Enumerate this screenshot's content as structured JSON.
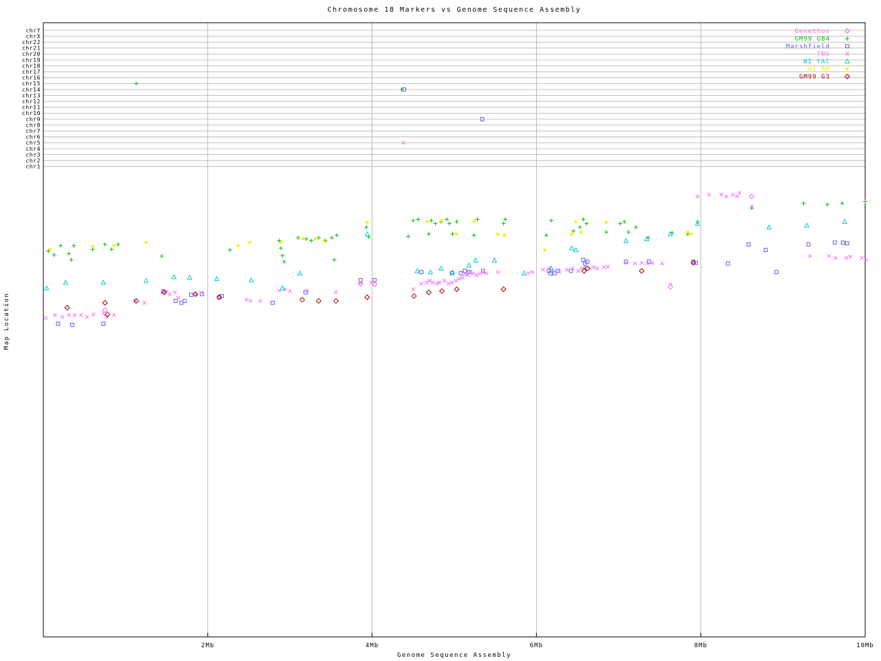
{
  "title": "Chromosome 18 Markers vs Genome Sequence Assembly",
  "axes": {
    "xlabel": "Genome Sequence Assembly",
    "ylabel": "Map Location",
    "x_range_mb": [
      0,
      10
    ],
    "x_ticks": [
      {
        "label": "2Mb",
        "mb": 2
      },
      {
        "label": "4Mb",
        "mb": 4
      },
      {
        "label": "6Mb",
        "mb": 6
      },
      {
        "label": "8Mb",
        "mb": 8
      },
      {
        "label": "10Mb",
        "mb": 10
      }
    ],
    "grid": true
  },
  "chromosome_rows": [
    "chrY",
    "chrX",
    "chr22",
    "chr21",
    "chr20",
    "chr19",
    "chr18",
    "chr17",
    "chr16",
    "chr15",
    "chr14",
    "chr13",
    "chr12",
    "chr11",
    "chr10",
    "chr9",
    "chr8",
    "chr7",
    "chr6",
    "chr5",
    "chr4",
    "chr3",
    "chr2",
    "chr1"
  ],
  "colors": {
    "frame": "#000000",
    "grid": "#b8b8b8",
    "chrom_line": "#b0b0b0"
  },
  "chart_data": {
    "type": "scatter",
    "title": "Chromosome 18 Markers vs Genome Sequence Assembly",
    "xlabel": "Genome Sequence Assembly",
    "ylabel": "Map Location",
    "x_unit": "Mb",
    "x_range": [
      0,
      10
    ],
    "y_note": "No numeric y scale shown; y given as fraction of plot height from top. Top band rows are other-chromosome hits listed in off_target_points.",
    "legend_position": "top-right",
    "series": [
      {
        "name": "Genethon",
        "marker": "diamond",
        "color": "#ee66ee",
        "points": [
          [
            0.75,
            0.468
          ],
          [
            3.86,
            0.425
          ],
          [
            4.03,
            0.426
          ],
          [
            7.63,
            0.43
          ],
          [
            8.62,
            0.283
          ]
        ]
      },
      {
        "name": "GM99 GB4",
        "marker": "plus",
        "color": "#00bb00",
        "points": [
          [
            0.06,
            0.372
          ],
          [
            0.13,
            0.378
          ],
          [
            0.21,
            0.363
          ],
          [
            0.31,
            0.376
          ],
          [
            0.34,
            0.386
          ],
          [
            0.37,
            0.363
          ],
          [
            0.6,
            0.369
          ],
          [
            0.75,
            0.361
          ],
          [
            0.83,
            0.369
          ],
          [
            0.91,
            0.361
          ],
          [
            1.44,
            0.38
          ],
          [
            2.27,
            0.37
          ],
          [
            2.87,
            0.355
          ],
          [
            2.89,
            0.367
          ],
          [
            2.91,
            0.379
          ],
          [
            2.93,
            0.389
          ],
          [
            3.1,
            0.35
          ],
          [
            3.2,
            0.352
          ],
          [
            3.26,
            0.355
          ],
          [
            3.35,
            0.35
          ],
          [
            3.43,
            0.355
          ],
          [
            3.51,
            0.35
          ],
          [
            3.54,
            0.386
          ],
          [
            3.57,
            0.346
          ],
          [
            3.93,
            0.333
          ],
          [
            3.96,
            0.349
          ],
          [
            4.44,
            0.348
          ],
          [
            4.5,
            0.322
          ],
          [
            4.56,
            0.32
          ],
          [
            4.69,
            0.344
          ],
          [
            4.72,
            0.322
          ],
          [
            4.77,
            0.327
          ],
          [
            4.84,
            0.324
          ],
          [
            4.91,
            0.32
          ],
          [
            4.94,
            0.327
          ],
          [
            4.98,
            0.344
          ],
          [
            5.03,
            0.324
          ],
          [
            5.24,
            0.346
          ],
          [
            5.28,
            0.32
          ],
          [
            5.6,
            0.327
          ],
          [
            5.62,
            0.32
          ],
          [
            6.12,
            0.346
          ],
          [
            6.18,
            0.322
          ],
          [
            6.45,
            0.339
          ],
          [
            6.53,
            0.333
          ],
          [
            6.57,
            0.32
          ],
          [
            6.61,
            0.327
          ],
          [
            6.85,
            0.341
          ],
          [
            7.02,
            0.327
          ],
          [
            7.07,
            0.324
          ],
          [
            7.12,
            0.341
          ],
          [
            7.21,
            0.333
          ],
          [
            7.36,
            0.35
          ],
          [
            7.65,
            0.342
          ],
          [
            7.84,
            0.344
          ],
          [
            7.96,
            0.324
          ],
          [
            8.62,
            0.302
          ],
          [
            9.25,
            0.294
          ],
          [
            9.54,
            0.296
          ],
          [
            9.72,
            0.294
          ],
          [
            10.0,
            0.291
          ]
        ]
      },
      {
        "name": "Marshfield",
        "marker": "square",
        "color": "#5c5cff",
        "points": [
          [
            0.18,
            0.49
          ],
          [
            0.35,
            0.492
          ],
          [
            0.73,
            0.49
          ],
          [
            1.46,
            0.437
          ],
          [
            1.61,
            0.453
          ],
          [
            1.68,
            0.456
          ],
          [
            1.72,
            0.453
          ],
          [
            1.8,
            0.443
          ],
          [
            1.93,
            0.442
          ],
          [
            2.14,
            0.447
          ],
          [
            2.17,
            0.445
          ],
          [
            2.79,
            0.456
          ],
          [
            3.19,
            0.439
          ],
          [
            3.86,
            0.419
          ],
          [
            4.03,
            0.419
          ],
          [
            4.6,
            0.406
          ],
          [
            4.97,
            0.408
          ],
          [
            5.08,
            0.408
          ],
          [
            5.13,
            0.404
          ],
          [
            5.18,
            0.406
          ],
          [
            5.35,
            0.404
          ],
          [
            6.15,
            0.404
          ],
          [
            6.17,
            0.408
          ],
          [
            6.22,
            0.408
          ],
          [
            6.26,
            0.404
          ],
          [
            6.42,
            0.404
          ],
          [
            6.57,
            0.386
          ],
          [
            6.59,
            0.392
          ],
          [
            6.62,
            0.389
          ],
          [
            7.09,
            0.389
          ],
          [
            7.37,
            0.389
          ],
          [
            7.91,
            0.389
          ],
          [
            7.94,
            0.391
          ],
          [
            8.33,
            0.392
          ],
          [
            8.58,
            0.361
          ],
          [
            8.79,
            0.37
          ],
          [
            8.92,
            0.406
          ],
          [
            9.31,
            0.361
          ],
          [
            9.63,
            0.358
          ],
          [
            9.73,
            0.358
          ],
          [
            9.78,
            0.359
          ]
        ]
      },
      {
        "name": "TNG",
        "marker": "x",
        "color": "#f075f0",
        "points": [
          [
            0.03,
            0.481
          ],
          [
            0.14,
            0.476
          ],
          [
            0.23,
            0.479
          ],
          [
            0.31,
            0.476
          ],
          [
            0.38,
            0.476
          ],
          [
            0.46,
            0.476
          ],
          [
            0.53,
            0.479
          ],
          [
            0.61,
            0.475
          ],
          [
            0.73,
            0.473
          ],
          [
            0.77,
            0.479
          ],
          [
            0.86,
            0.476
          ],
          [
            1.12,
            0.453
          ],
          [
            1.23,
            0.456
          ],
          [
            1.45,
            0.439
          ],
          [
            1.5,
            0.437
          ],
          [
            1.54,
            0.442
          ],
          [
            1.6,
            0.439
          ],
          [
            1.64,
            0.448
          ],
          [
            1.86,
            0.442
          ],
          [
            1.92,
            0.439
          ],
          [
            2.14,
            0.445
          ],
          [
            2.47,
            0.451
          ],
          [
            2.52,
            0.453
          ],
          [
            2.64,
            0.453
          ],
          [
            2.87,
            0.436
          ],
          [
            2.94,
            0.434
          ],
          [
            3.0,
            0.437
          ],
          [
            3.21,
            0.436
          ],
          [
            3.56,
            0.439
          ],
          [
            3.86,
            0.423
          ],
          [
            3.99,
            0.423
          ],
          [
            4.5,
            0.434
          ],
          [
            4.6,
            0.425
          ],
          [
            4.66,
            0.423
          ],
          [
            4.7,
            0.42
          ],
          [
            4.74,
            0.423
          ],
          [
            4.79,
            0.425
          ],
          [
            4.82,
            0.423
          ],
          [
            4.88,
            0.42
          ],
          [
            4.93,
            0.425
          ],
          [
            4.97,
            0.423
          ],
          [
            5.02,
            0.42
          ],
          [
            5.06,
            0.417
          ],
          [
            5.1,
            0.415
          ],
          [
            5.13,
            0.409
          ],
          [
            5.16,
            0.411
          ],
          [
            5.19,
            0.406
          ],
          [
            5.23,
            0.408
          ],
          [
            5.27,
            0.411
          ],
          [
            5.31,
            0.409
          ],
          [
            5.35,
            0.406
          ],
          [
            5.39,
            0.408
          ],
          [
            5.53,
            0.406
          ],
          [
            5.9,
            0.408
          ],
          [
            5.95,
            0.406
          ],
          [
            6.08,
            0.402
          ],
          [
            6.15,
            0.4
          ],
          [
            6.2,
            0.404
          ],
          [
            6.28,
            0.406
          ],
          [
            6.37,
            0.402
          ],
          [
            6.44,
            0.4
          ],
          [
            6.51,
            0.404
          ],
          [
            6.55,
            0.4
          ],
          [
            6.59,
            0.397
          ],
          [
            6.65,
            0.4
          ],
          [
            6.7,
            0.398
          ],
          [
            6.74,
            0.4
          ],
          [
            6.82,
            0.398
          ],
          [
            6.87,
            0.397
          ],
          [
            7.09,
            0.391
          ],
          [
            7.2,
            0.392
          ],
          [
            7.28,
            0.391
          ],
          [
            7.35,
            0.392
          ],
          [
            7.41,
            0.391
          ],
          [
            7.53,
            0.392
          ],
          [
            7.63,
            0.426
          ],
          [
            7.91,
            0.391
          ],
          [
            7.96,
            0.283
          ],
          [
            8.1,
            0.28
          ],
          [
            8.25,
            0.28
          ],
          [
            8.31,
            0.283
          ],
          [
            8.39,
            0.28
          ],
          [
            8.44,
            0.283
          ],
          [
            8.47,
            0.277
          ],
          [
            8.62,
            0.299
          ],
          [
            9.33,
            0.38
          ],
          [
            9.56,
            0.38
          ],
          [
            9.64,
            0.383
          ],
          [
            9.77,
            0.383
          ],
          [
            9.82,
            0.381
          ],
          [
            9.96,
            0.383
          ],
          [
            10.01,
            0.386
          ]
        ]
      },
      {
        "name": "WI YAC",
        "marker": "triangle",
        "color": "#00cccc",
        "points": [
          [
            0.04,
            0.432
          ],
          [
            0.27,
            0.423
          ],
          [
            0.73,
            0.423
          ],
          [
            1.25,
            0.42
          ],
          [
            1.59,
            0.414
          ],
          [
            1.78,
            0.415
          ],
          [
            2.11,
            0.417
          ],
          [
            2.53,
            0.419
          ],
          [
            2.91,
            0.432
          ],
          [
            3.12,
            0.408
          ],
          [
            3.94,
            0.344
          ],
          [
            4.55,
            0.404
          ],
          [
            4.71,
            0.406
          ],
          [
            4.84,
            0.4
          ],
          [
            4.98,
            0.406
          ],
          [
            5.18,
            0.395
          ],
          [
            5.26,
            0.387
          ],
          [
            5.49,
            0.387
          ],
          [
            5.85,
            0.408
          ],
          [
            6.18,
            0.4
          ],
          [
            6.43,
            0.367
          ],
          [
            6.48,
            0.37
          ],
          [
            7.09,
            0.355
          ],
          [
            7.34,
            0.352
          ],
          [
            7.63,
            0.344
          ],
          [
            7.96,
            0.327
          ],
          [
            8.83,
            0.333
          ],
          [
            9.29,
            0.33
          ],
          [
            9.75,
            0.324
          ]
        ]
      },
      {
        "name": "WI RH",
        "marker": "square-filled",
        "color": "#f5f500",
        "points": [
          [
            0.08,
            0.369
          ],
          [
            0.6,
            0.364
          ],
          [
            0.86,
            0.363
          ],
          [
            1.25,
            0.358
          ],
          [
            2.37,
            0.363
          ],
          [
            2.51,
            0.358
          ],
          [
            2.89,
            0.358
          ],
          [
            3.16,
            0.352
          ],
          [
            3.31,
            0.352
          ],
          [
            3.41,
            0.355
          ],
          [
            3.94,
            0.325
          ],
          [
            4.67,
            0.324
          ],
          [
            4.84,
            0.322
          ],
          [
            5.03,
            0.344
          ],
          [
            5.24,
            0.324
          ],
          [
            5.53,
            0.344
          ],
          [
            5.61,
            0.346
          ],
          [
            6.1,
            0.37
          ],
          [
            6.43,
            0.344
          ],
          [
            6.48,
            0.324
          ],
          [
            6.54,
            0.341
          ],
          [
            6.85,
            0.325
          ],
          [
            7.84,
            0.341
          ],
          [
            7.88,
            0.344
          ]
        ]
      },
      {
        "name": "GM99 G3",
        "marker": "diamond",
        "color": "#a00000",
        "points": [
          [
            0.29,
            0.464
          ],
          [
            0.75,
            0.456
          ],
          [
            0.78,
            0.475
          ],
          [
            1.13,
            0.453
          ],
          [
            1.47,
            0.439
          ],
          [
            1.85,
            0.442
          ],
          [
            2.14,
            0.447
          ],
          [
            3.15,
            0.451
          ],
          [
            3.35,
            0.453
          ],
          [
            3.56,
            0.453
          ],
          [
            3.94,
            0.447
          ],
          [
            4.51,
            0.445
          ],
          [
            4.69,
            0.439
          ],
          [
            4.85,
            0.437
          ],
          [
            5.03,
            0.434
          ],
          [
            5.6,
            0.434
          ],
          [
            6.58,
            0.404
          ],
          [
            6.62,
            0.4
          ],
          [
            7.28,
            0.404
          ],
          [
            7.91,
            0.391
          ]
        ]
      }
    ],
    "off_target_points": [
      {
        "series": "GM99 GB4",
        "chrom": "chr15",
        "x_mb": 1.13
      },
      {
        "series": "GM99 GB4",
        "chrom": "chr14",
        "x_mb": 4.36
      },
      {
        "series": "Marshfield",
        "chrom": "chr14",
        "x_mb": 4.39
      },
      {
        "series": "Marshfield",
        "chrom": "chr9",
        "x_mb": 5.34
      },
      {
        "series": "TNG",
        "chrom": "chr5",
        "x_mb": 4.38
      }
    ]
  }
}
